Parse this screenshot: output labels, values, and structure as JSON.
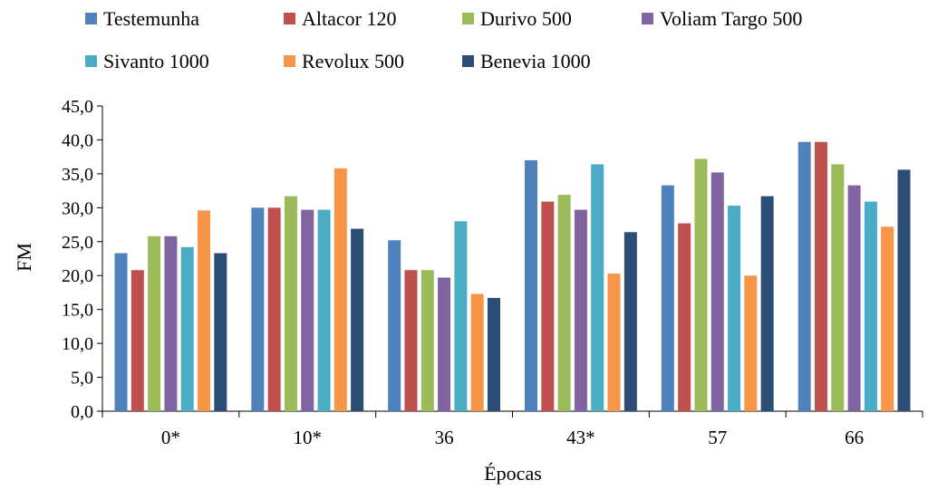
{
  "chart_data": {
    "type": "bar",
    "xlabel": "Épocas",
    "ylabel": "FM",
    "ylim": [
      0,
      45
    ],
    "ytick_step": 5,
    "ytick_labels": [
      "0,0",
      "5,0",
      "10,0",
      "15,0",
      "20,0",
      "25,0",
      "30,0",
      "35,0",
      "40,0",
      "45,0"
    ],
    "grid": false,
    "legend_position": "top",
    "categories": [
      "0*",
      "10*",
      "36",
      "43*",
      "57",
      "66"
    ],
    "series": [
      {
        "name": "Testemunha",
        "color": "#4f81bd",
        "values": [
          23.3,
          30.0,
          25.2,
          37.0,
          33.3,
          39.7
        ]
      },
      {
        "name": "Altacor 120",
        "color": "#c0504d",
        "values": [
          20.8,
          30.0,
          20.8,
          30.9,
          27.7,
          39.7
        ]
      },
      {
        "name": "Durivo 500",
        "color": "#9bbb59",
        "values": [
          25.8,
          31.7,
          20.8,
          31.9,
          37.2,
          36.4
        ]
      },
      {
        "name": "Voliam Targo 500",
        "color": "#8064a2",
        "values": [
          25.8,
          29.7,
          19.7,
          29.7,
          35.2,
          33.3
        ]
      },
      {
        "name": "Sivanto 1000",
        "color": "#4bacc6",
        "values": [
          24.2,
          29.7,
          28.0,
          36.4,
          30.3,
          30.9
        ]
      },
      {
        "name": "Revolux 500",
        "color": "#f79646",
        "values": [
          29.6,
          35.8,
          17.3,
          20.3,
          20.0,
          27.2
        ]
      },
      {
        "name": "Benevia 1000",
        "color": "#2c4d75",
        "values": [
          23.3,
          26.9,
          16.7,
          26.4,
          31.7,
          35.6
        ]
      }
    ]
  }
}
